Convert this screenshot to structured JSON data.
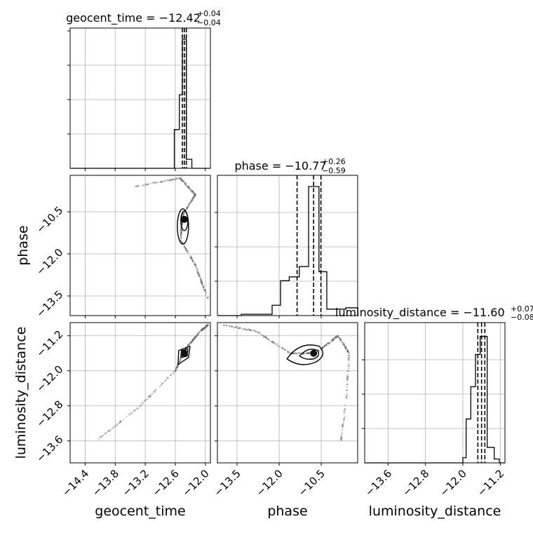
{
  "chart_data": [
    {
      "type": "histogram",
      "id": "p00",
      "title_param": "geocent_time",
      "title_value": "−12.42",
      "title_sup": "+0.04",
      "title_sub": "−0.04",
      "xlim": [
        -14.7,
        -11.9
      ],
      "bins": {
        "edges": [
          -12.62,
          -12.52,
          -12.46,
          -12.38,
          -12.27,
          -12.16
        ],
        "counts": [
          0.3,
          0.57,
          1.0,
          0.07,
          0.0
        ]
      },
      "quantile_lines": [
        -12.46,
        -12.42,
        -12.38
      ],
      "grid": true
    },
    {
      "type": "histogram",
      "id": "p11",
      "title_param": "phase",
      "title_value": "−10.77",
      "title_sup": "+0.26",
      "title_sub": "−0.59",
      "xlim": [
        -14.2,
        -9.2
      ],
      "bins": {
        "edges": [
          -14.2,
          -13.35,
          -12.25,
          -11.95,
          -11.64,
          -11.28,
          -10.95,
          -10.58,
          -10.3,
          -9.95,
          -9.62,
          -9.2
        ],
        "counts": [
          0.0,
          0.01,
          0.08,
          0.27,
          0.3,
          0.38,
          1.0,
          0.34,
          0.05,
          0.05,
          0.06
        ]
      },
      "quantile_lines": [
        -11.36,
        -10.77,
        -10.51
      ],
      "grid": true
    },
    {
      "type": "histogram",
      "id": "p22",
      "title_param": "luminosity_distance",
      "title_value": "−11.60",
      "title_sup": "+0.07",
      "title_sub": "−0.08",
      "xlim": [
        -14.1,
        -11.1
      ],
      "bins": {
        "edges": [
          -12.0,
          -11.93,
          -11.83,
          -11.73,
          -11.63,
          -11.48,
          -11.33,
          -11.22
        ],
        "counts": [
          0.04,
          0.34,
          0.59,
          0.84,
          0.98,
          0.12,
          0.03
        ]
      },
      "quantile_lines": [
        -11.68,
        -11.6,
        -11.53
      ],
      "grid": true
    },
    {
      "type": "scatter",
      "id": "p10",
      "x_param": "geocent_time",
      "y_param": "phase",
      "xlim": [
        -14.7,
        -11.9
      ],
      "ylim": [
        -14.2,
        -9.2
      ],
      "mode": "alpha",
      "peak": [
        -12.42,
        -10.77
      ],
      "grid": true
    },
    {
      "type": "scatter",
      "id": "p20",
      "x_param": "geocent_time",
      "y_param": "luminosity_distance",
      "xlim": [
        -14.7,
        -11.9
      ],
      "ylim": [
        -14.1,
        -10.9
      ],
      "mode": "alpha",
      "peak": [
        -12.42,
        -11.6
      ],
      "grid": true
    },
    {
      "type": "scatter",
      "id": "p21",
      "x_param": "phase",
      "y_param": "luminosity_distance",
      "xlim": [
        -14.2,
        -9.2
      ],
      "ylim": [
        -14.1,
        -10.9
      ],
      "mode": "alpha",
      "peak": [
        -10.77,
        -11.6
      ],
      "grid": true
    }
  ],
  "labels": {
    "bottom": [
      "geocent_time",
      "phase",
      "luminosity_distance"
    ],
    "left": [
      "phase",
      "luminosity_distance"
    ]
  },
  "ticks": {
    "geocent_time": [
      -14.4,
      -13.8,
      -13.2,
      -12.6,
      -12.0
    ],
    "geocent_time_labels": [
      "−14.4",
      "−13.8",
      "−13.2",
      "−12.6",
      "−12.0"
    ],
    "phase": [
      -13.5,
      -12.0,
      -10.5
    ],
    "phase_labels": [
      "−13.5",
      "−12.0",
      "−10.5"
    ],
    "luminosity_distance": [
      -13.6,
      -12.8,
      -12.0,
      -11.2
    ],
    "luminosity_distance_labels": [
      "−13.6",
      "−12.8",
      "−12.0",
      "−11.2"
    ]
  }
}
